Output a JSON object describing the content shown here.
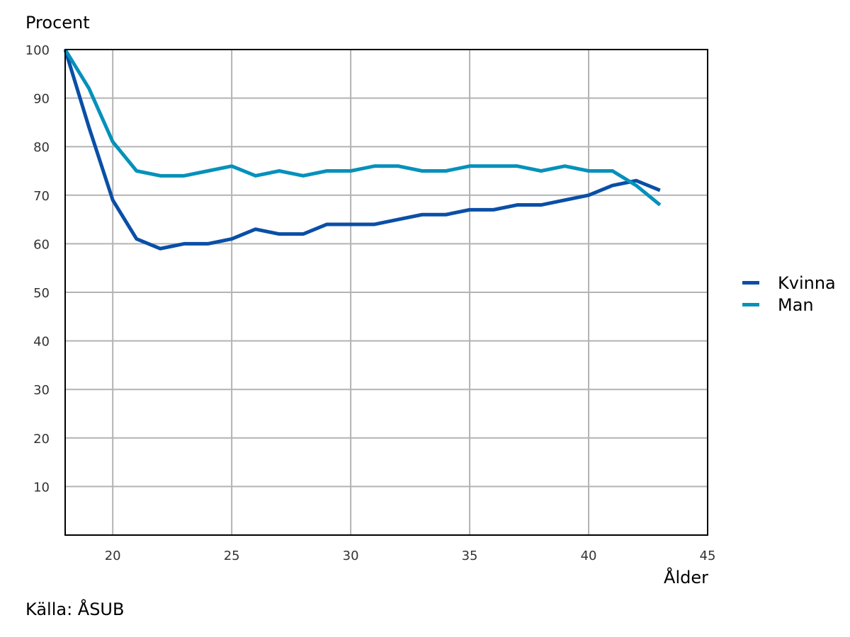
{
  "chart_data": {
    "type": "line",
    "ylabel": "Procent",
    "xlabel": "Ålder",
    "source": "Källa: ÅSUB",
    "xlim": [
      18,
      45
    ],
    "ylim": [
      0,
      100
    ],
    "xticks": [
      20,
      25,
      30,
      35,
      40,
      45
    ],
    "yticks": [
      10,
      20,
      30,
      40,
      50,
      60,
      70,
      80,
      90,
      100
    ],
    "grid": true,
    "legend_position": "right",
    "x": [
      18,
      19,
      20,
      21,
      22,
      23,
      24,
      25,
      26,
      27,
      28,
      29,
      30,
      31,
      32,
      33,
      34,
      35,
      36,
      37,
      38,
      39,
      40,
      41,
      42,
      43
    ],
    "series": [
      {
        "name": "Kvinna",
        "color": "#0a4fa6",
        "values": [
          100,
          84,
          69,
          61,
          59,
          60,
          60,
          61,
          63,
          62,
          62,
          64,
          64,
          64,
          65,
          66,
          66,
          67,
          67,
          68,
          68,
          69,
          70,
          72,
          73,
          71
        ]
      },
      {
        "name": "Man",
        "color": "#0591bb",
        "values": [
          100,
          92,
          81,
          75,
          74,
          74,
          75,
          76,
          74,
          75,
          74,
          75,
          75,
          76,
          76,
          75,
          75,
          76,
          76,
          76,
          75,
          76,
          75,
          75,
          72,
          68
        ]
      }
    ]
  }
}
